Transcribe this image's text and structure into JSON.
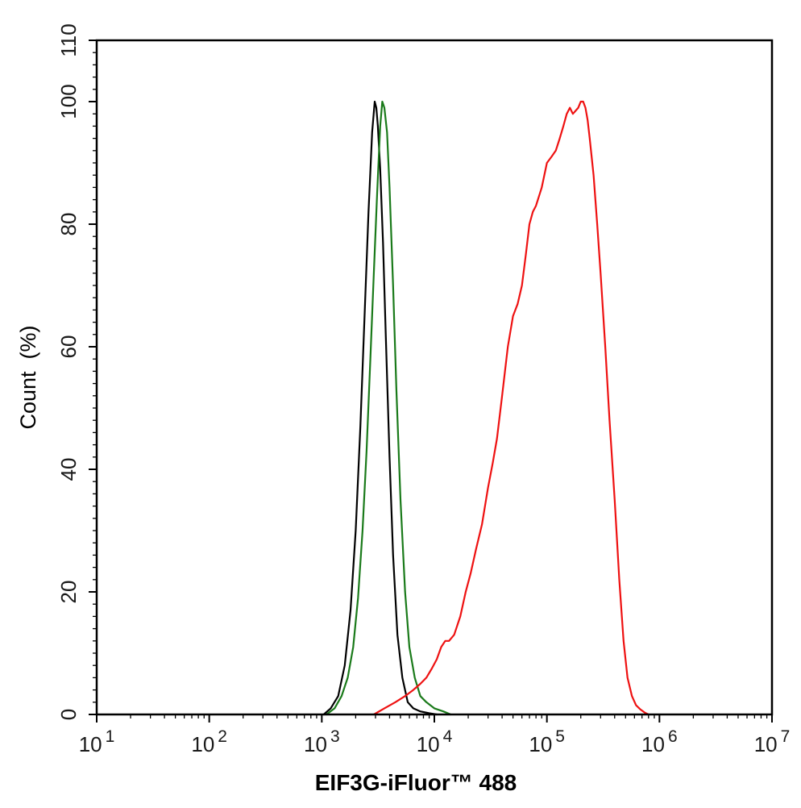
{
  "chart_data": {
    "type": "line",
    "title": "",
    "xlabel": "EIF3G-iFluor™ 488",
    "ylabel": "Count  (%)",
    "x_scale": "log",
    "xlim": [
      10,
      10000000
    ],
    "ylim": [
      0,
      110
    ],
    "grid": false,
    "x_ticks": [
      {
        "value": 10,
        "base": "10",
        "exp": "1"
      },
      {
        "value": 100,
        "base": "10",
        "exp": "2"
      },
      {
        "value": 1000,
        "base": "10",
        "exp": "3"
      },
      {
        "value": 10000,
        "base": "10",
        "exp": "4"
      },
      {
        "value": 100000,
        "base": "10",
        "exp": "5"
      },
      {
        "value": 1000000,
        "base": "10",
        "exp": "6"
      },
      {
        "value": 10000000,
        "base": "10",
        "exp": "7"
      }
    ],
    "y_ticks": [
      {
        "value": 0,
        "label": "0"
      },
      {
        "value": 20,
        "label": "20"
      },
      {
        "value": 40,
        "label": "40"
      },
      {
        "value": 60,
        "label": "60"
      },
      {
        "value": 80,
        "label": "80"
      },
      {
        "value": 100,
        "label": "100"
      },
      {
        "value": 110,
        "label": "110"
      }
    ],
    "series": [
      {
        "color": "#000000",
        "x": [
          1040,
          1200,
          1400,
          1600,
          1800,
          2000,
          2200,
          2400,
          2600,
          2800,
          2950,
          3050,
          3150,
          3300,
          3500,
          3700,
          4000,
          4300,
          4700,
          5200,
          5800,
          6500,
          7500,
          9000,
          10500
        ],
        "y": [
          0,
          1,
          3,
          8,
          17,
          30,
          47,
          65,
          82,
          95,
          100,
          99,
          96,
          89,
          77,
          62,
          42,
          26,
          13,
          6,
          2,
          1,
          0.5,
          0.2,
          0
        ]
      },
      {
        "color": "#1a7a1a",
        "x": [
          1100,
          1300,
          1500,
          1700,
          1900,
          2100,
          2300,
          2500,
          2700,
          2900,
          3100,
          3300,
          3450,
          3600,
          3800,
          4000,
          4300,
          4600,
          5000,
          5500,
          6000,
          6700,
          7500,
          8500,
          10000,
          12000,
          14000
        ],
        "y": [
          0,
          1,
          3,
          6,
          11,
          19,
          30,
          43,
          58,
          72,
          85,
          96,
          100,
          99,
          95,
          86,
          70,
          53,
          35,
          20,
          11,
          6,
          3,
          2,
          1,
          0.5,
          0
        ]
      },
      {
        "color": "#ee1111",
        "x": [
          2900,
          3600,
          4500,
          5500,
          6500,
          7500,
          8500,
          9500,
          10500,
          11500,
          12500,
          13500,
          15000,
          17000,
          19000,
          21000,
          23500,
          26500,
          30000,
          33000,
          36000,
          40000,
          45000,
          50000,
          55000,
          60000,
          65000,
          70000,
          75000,
          80000,
          90000,
          100000,
          110000,
          120000,
          130000,
          140000,
          150000,
          160000,
          170000,
          180000,
          190000,
          200000,
          210000,
          220000,
          230000,
          240000,
          260000,
          280000,
          300000,
          330000,
          360000,
          400000,
          440000,
          480000,
          520000,
          570000,
          620000,
          680000,
          740000,
          800000
        ],
        "y": [
          0,
          1,
          2,
          3,
          4,
          5,
          6,
          7.5,
          9,
          11,
          12,
          12,
          13,
          16,
          20,
          23,
          27,
          31,
          37,
          41,
          45,
          52,
          60,
          65,
          67,
          70,
          75,
          80,
          82,
          83,
          86,
          90,
          91,
          92,
          94,
          96,
          98,
          99,
          98,
          98.5,
          99,
          100,
          100,
          99,
          97,
          94,
          88,
          80,
          72,
          60,
          48,
          35,
          22,
          12,
          6,
          3,
          1.5,
          0.8,
          0.3,
          0
        ]
      }
    ]
  }
}
